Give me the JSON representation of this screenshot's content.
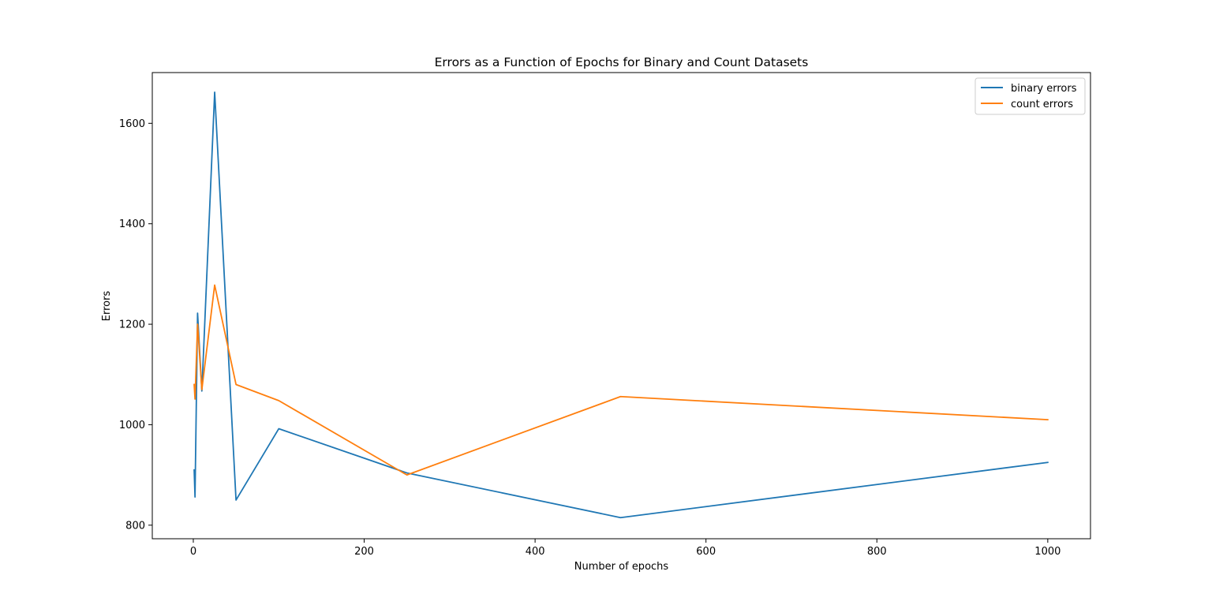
{
  "chart_data": {
    "type": "line",
    "title": "Errors as a Function of Epochs for Binary and Count Datasets",
    "xlabel": "Number of epochs",
    "ylabel": "Errors",
    "xlim": [
      -48,
      1050
    ],
    "ylim": [
      773,
      1701
    ],
    "xticks": [
      0,
      200,
      400,
      600,
      800,
      1000
    ],
    "yticks": [
      800,
      1000,
      1200,
      1400,
      1600
    ],
    "grid": false,
    "legend_position": "top-right",
    "series": [
      {
        "name": "binary errors",
        "color": "#1f77b4",
        "x": [
          1,
          2,
          5,
          10,
          25,
          50,
          100,
          250,
          500,
          1000
        ],
        "y": [
          910,
          856,
          1222,
          1067,
          1662,
          850,
          992,
          904,
          815,
          925
        ]
      },
      {
        "name": "count errors",
        "color": "#ff7f0e",
        "x": [
          1,
          2,
          5,
          10,
          25,
          50,
          100,
          250,
          500,
          1000
        ],
        "y": [
          1080,
          1051,
          1200,
          1070,
          1278,
          1080,
          1048,
          900,
          1056,
          1010
        ]
      }
    ]
  }
}
